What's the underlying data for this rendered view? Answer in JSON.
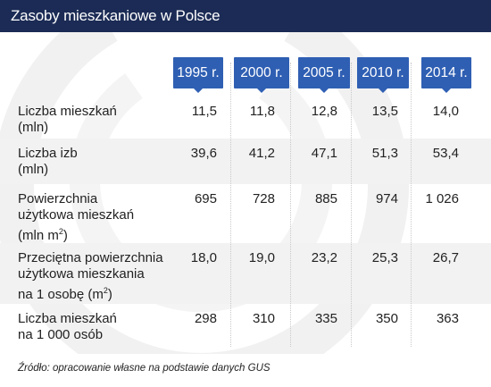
{
  "header": {
    "title": "Zasoby mieszkaniowe w Polsce"
  },
  "source": "Źródło: opracowanie własne na podstawie danych GUS",
  "colors": {
    "header_bg": "#1b2b55",
    "badge_bg": "#2f5fb3",
    "band_bg": "#f2f2f2"
  },
  "chart_data": {
    "type": "table",
    "title": "Zasoby mieszkaniowe w Polsce",
    "columns": [
      "1995 r.",
      "2000 r.",
      "2005 r.",
      "2010 r.",
      "2014 r."
    ],
    "rows": [
      {
        "label_lines": [
          "Liczba mieszkań",
          "(mln)"
        ],
        "values": [
          "11,5",
          "11,8",
          "12,8",
          "13,5",
          "14,0"
        ]
      },
      {
        "label_lines": [
          "Liczba izb",
          "(mln)"
        ],
        "values": [
          "39,6",
          "41,2",
          "47,1",
          "51,3",
          "53,4"
        ]
      },
      {
        "label_lines": [
          "Powierzchnia",
          "użytkowa mieszkań",
          "(mln m",
          "2",
          ")"
        ],
        "values": [
          "695",
          "728",
          "885",
          "974",
          "1 026"
        ]
      },
      {
        "label_lines": [
          "Przeciętna powierzchnia",
          "użytkowa mieszkania",
          "na 1 osobę (m",
          "2",
          ")"
        ],
        "values": [
          "18,0",
          "19,0",
          "23,2",
          "25,3",
          "26,7"
        ]
      },
      {
        "label_lines": [
          "Liczba mieszkań",
          "na 1 000 osób"
        ],
        "values": [
          "298",
          "310",
          "335",
          "350",
          "363"
        ]
      }
    ]
  }
}
